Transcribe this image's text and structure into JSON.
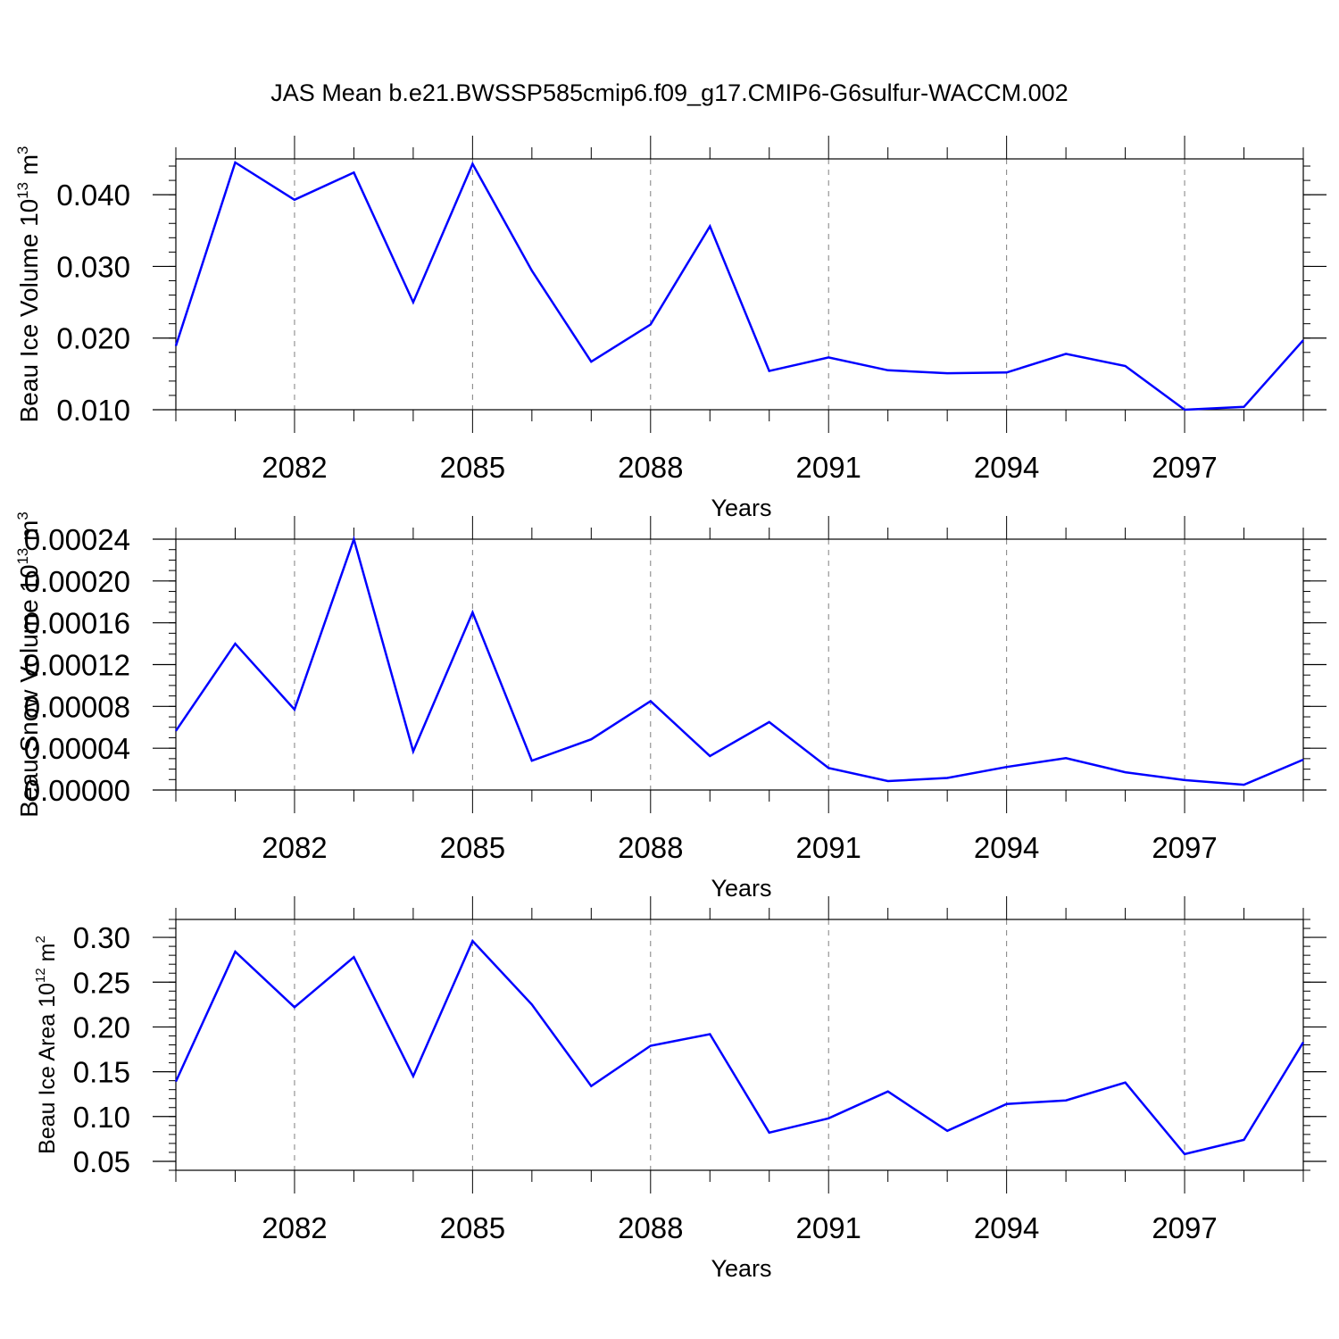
{
  "title": "JAS Mean b.e21.BWSSP585cmip6.f09_g17.CMIP6-G6sulfur-WACCM.002",
  "colors": {
    "line": "#0000ff",
    "axis": "#000000",
    "grid": "#808080"
  },
  "chart_data": [
    {
      "type": "line",
      "ylabel": "Beau Ice Volume 10",
      "ylabel_sup1": "13",
      "ylabel_unit": " m",
      "ylabel_sup2": "3",
      "xlabel": "Years",
      "xlim": [
        2080,
        2099
      ],
      "ylim": [
        0.01,
        0.045
      ],
      "yticks": [
        "0.010",
        "0.020",
        "0.030",
        "0.040"
      ],
      "ytick_values": [
        0.01,
        0.02,
        0.03,
        0.04
      ],
      "yminor_step": 0.002,
      "xticks": [
        "2082",
        "2085",
        "2088",
        "2091",
        "2094",
        "2097"
      ],
      "xtick_values": [
        2082,
        2085,
        2088,
        2091,
        2094,
        2097
      ],
      "grid": "vertical dashed at major x ticks",
      "x": [
        2080,
        2081,
        2082,
        2083,
        2084,
        2085,
        2086,
        2087,
        2088,
        2089,
        2090,
        2091,
        2092,
        2093,
        2094,
        2095,
        2096,
        2097,
        2098,
        2099
      ],
      "values": [
        0.0189,
        0.0445,
        0.0393,
        0.0431,
        0.025,
        0.0443,
        0.0294,
        0.0167,
        0.0219,
        0.0356,
        0.0154,
        0.0173,
        0.0155,
        0.0151,
        0.0152,
        0.0178,
        0.0161,
        0.01,
        0.0104,
        0.0197
      ]
    },
    {
      "type": "line",
      "ylabel": "Beau Snow Volume 10",
      "ylabel_sup1": "13",
      "ylabel_unit": " m",
      "ylabel_sup2": "3",
      "xlabel": "Years",
      "xlim": [
        2080,
        2099
      ],
      "ylim": [
        0.0,
        0.00024
      ],
      "yticks": [
        "0.00000",
        "0.00004",
        "0.00008",
        "0.00012",
        "0.00016",
        "0.00020",
        "0.00024"
      ],
      "ytick_values": [
        0.0,
        4e-05,
        8e-05,
        0.00012,
        0.00016,
        0.0002,
        0.00024
      ],
      "yminor_step": 1e-05,
      "xticks": [
        "2082",
        "2085",
        "2088",
        "2091",
        "2094",
        "2097"
      ],
      "xtick_values": [
        2082,
        2085,
        2088,
        2091,
        2094,
        2097
      ],
      "grid": "vertical dashed at major x ticks",
      "x": [
        2080,
        2081,
        2082,
        2083,
        2084,
        2085,
        2086,
        2087,
        2088,
        2089,
        2090,
        2091,
        2092,
        2093,
        2094,
        2095,
        2096,
        2097,
        2098,
        2099
      ],
      "values": [
        5.65e-05,
        0.00014,
        7.7e-05,
        0.00024,
        3.7e-05,
        0.00017,
        2.8e-05,
        4.85e-05,
        8.5e-05,
        3.25e-05,
        6.5e-05,
        2.1e-05,
        8.5e-06,
        1.15e-05,
        2.2e-05,
        3.05e-05,
        1.7e-05,
        9.5e-06,
        5e-06,
        2.9e-05
      ]
    },
    {
      "type": "line",
      "ylabel": "Beau Ice Area 10",
      "ylabel_sup1": "12",
      "ylabel_unit": " m",
      "ylabel_sup2": "2",
      "xlabel": "Years",
      "xlim": [
        2080,
        2099
      ],
      "ylim": [
        0.04,
        0.32
      ],
      "yticks": [
        "0.05",
        "0.10",
        "0.15",
        "0.20",
        "0.25",
        "0.30"
      ],
      "ytick_values": [
        0.05,
        0.1,
        0.15,
        0.2,
        0.25,
        0.3
      ],
      "yminor_step": 0.01,
      "xticks": [
        "2082",
        "2085",
        "2088",
        "2091",
        "2094",
        "2097"
      ],
      "xtick_values": [
        2082,
        2085,
        2088,
        2091,
        2094,
        2097
      ],
      "grid": "vertical dashed at major x ticks",
      "x": [
        2080,
        2081,
        2082,
        2083,
        2084,
        2085,
        2086,
        2087,
        2088,
        2089,
        2090,
        2091,
        2092,
        2093,
        2094,
        2095,
        2096,
        2097,
        2098,
        2099
      ],
      "values": [
        0.139,
        0.284,
        0.222,
        0.278,
        0.145,
        0.296,
        0.225,
        0.134,
        0.179,
        0.192,
        0.082,
        0.098,
        0.128,
        0.084,
        0.114,
        0.118,
        0.138,
        0.058,
        0.074,
        0.183
      ]
    }
  ]
}
